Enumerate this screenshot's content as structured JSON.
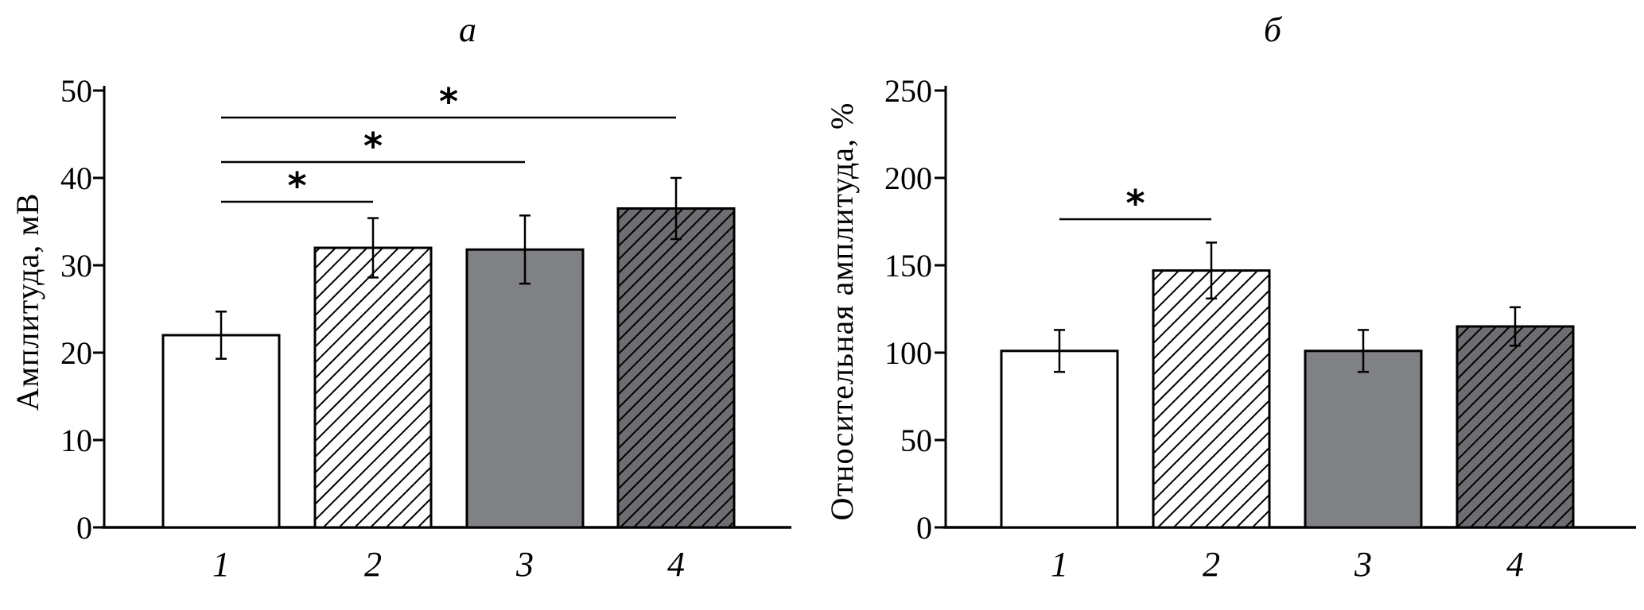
{
  "chart_data": [
    {
      "type": "bar",
      "panel_label": "а",
      "ylabel": "Амплитуда, мВ",
      "ylim": [
        0,
        50
      ],
      "yticks": [
        0,
        10,
        20,
        30,
        40,
        50
      ],
      "categories": [
        "1",
        "2",
        "3",
        "4"
      ],
      "values": [
        22,
        32,
        31.8,
        36.5
      ],
      "errors": [
        2.7,
        3.4,
        3.9,
        3.5
      ],
      "fills": [
        "white",
        "hatch-light",
        "gray",
        "hatch-dark"
      ],
      "significance": [
        {
          "from": "1",
          "to": "2",
          "label": "*"
        },
        {
          "from": "1",
          "to": "3",
          "label": "*"
        },
        {
          "from": "1",
          "to": "4",
          "label": "*"
        }
      ]
    },
    {
      "type": "bar",
      "panel_label": "б",
      "ylabel": "Относительная амплитуда, %",
      "ylim": [
        0,
        250
      ],
      "yticks": [
        0,
        50,
        100,
        150,
        200,
        250
      ],
      "categories": [
        "1",
        "2",
        "3",
        "4"
      ],
      "values": [
        101,
        147,
        101,
        115
      ],
      "errors": [
        12,
        16,
        12,
        11
      ],
      "fills": [
        "white",
        "hatch-light",
        "gray",
        "hatch-dark"
      ],
      "significance": [
        {
          "from": "1",
          "to": "2",
          "label": "*"
        }
      ]
    }
  ],
  "colors": {
    "gray_bar": "#808184",
    "dark_hatch_bg": "#6d6e71",
    "axis": "#000000"
  }
}
